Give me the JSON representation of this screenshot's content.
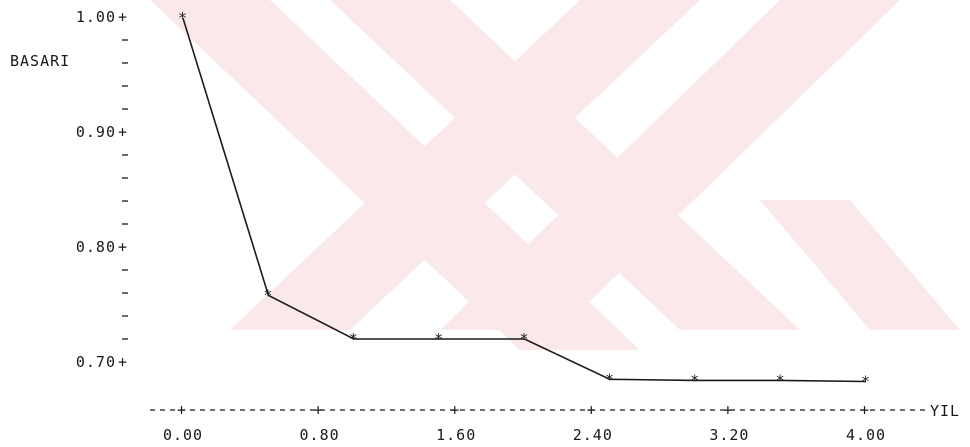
{
  "chart_data": {
    "type": "line",
    "xlabel": "YIL",
    "ylabel": "BASARI",
    "xlim": [
      0.0,
      4.0
    ],
    "ylim": [
      0.69,
      1.0
    ],
    "x_ticks": [
      "0.00",
      "0.80",
      "1.60",
      "2.40",
      "3.20",
      "4.00"
    ],
    "y_ticks": [
      "1.00",
      "0.90",
      "0.80",
      "0.70"
    ],
    "x": [
      0.0,
      0.5,
      1.0,
      1.5,
      2.0,
      2.5,
      3.0,
      3.5,
      4.0
    ],
    "y": [
      0.999,
      0.758,
      0.72,
      0.72,
      0.72,
      0.685,
      0.684,
      0.684,
      0.683
    ],
    "grid": false,
    "line_color": "#1a1a1a",
    "background_watermark_color": "#f7d7dc"
  }
}
